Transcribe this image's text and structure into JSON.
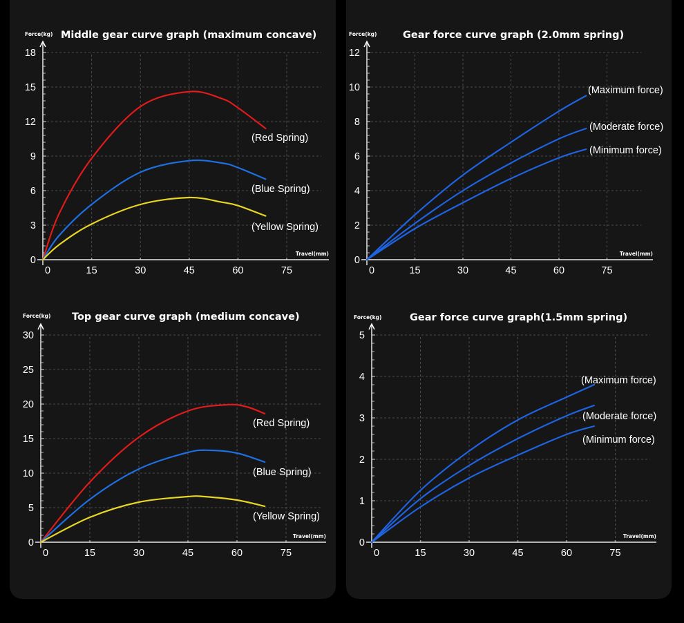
{
  "chart_data": [
    {
      "type": "line",
      "title": "Middle gear curve graph (maximum concave)",
      "ylabel": "Force(kg)",
      "xlabel": "Travel(mm)",
      "xticks": [
        0,
        15,
        30,
        45,
        60,
        75
      ],
      "yticks": [
        0,
        3,
        6,
        9,
        12,
        15,
        18
      ],
      "xlim": [
        0,
        75
      ],
      "ylim": [
        0,
        18
      ],
      "grid": true,
      "series": [
        {
          "name": "(Red Spring)",
          "color": "#e01b1b",
          "x": [
            0,
            5,
            15,
            30,
            45,
            55,
            60,
            68.5
          ],
          "y": [
            0,
            4.0,
            8.8,
            13.3,
            14.6,
            14.0,
            13.2,
            11.4
          ]
        },
        {
          "name": "(Blue Spring)",
          "color": "#1f6fe0",
          "x": [
            0,
            5,
            15,
            30,
            45,
            55,
            60,
            68.5
          ],
          "y": [
            0,
            2.1,
            4.8,
            7.6,
            8.6,
            8.4,
            8.0,
            7.0
          ]
        },
        {
          "name": "(Yellow Spring)",
          "color": "#e8d622",
          "x": [
            0,
            5,
            15,
            30,
            45,
            55,
            60,
            68.5
          ],
          "y": [
            0,
            1.3,
            3.1,
            4.8,
            5.4,
            5.0,
            4.7,
            3.8
          ]
        }
      ]
    },
    {
      "type": "line",
      "title": "Gear force curve graph (2.0mm spring)",
      "ylabel": "Force(kg)",
      "xlabel": "Travel(mm)",
      "xticks": [
        0,
        15,
        30,
        45,
        60,
        75
      ],
      "yticks": [
        0,
        2,
        4,
        6,
        8,
        10,
        12
      ],
      "xlim": [
        0,
        75
      ],
      "ylim": [
        0,
        12
      ],
      "grid": true,
      "series": [
        {
          "name": "(Maximum force)",
          "color": "#1f63e0",
          "x": [
            0,
            15,
            30,
            45,
            60,
            68.5
          ],
          "y": [
            0,
            2.6,
            4.9,
            6.8,
            8.6,
            9.5
          ]
        },
        {
          "name": "(Moderate force)",
          "color": "#1f63e0",
          "x": [
            0,
            15,
            30,
            45,
            60,
            68.5
          ],
          "y": [
            0,
            2.1,
            4.0,
            5.6,
            7.0,
            7.6
          ]
        },
        {
          "name": "(Minimum force)",
          "color": "#1f63e0",
          "x": [
            0,
            15,
            30,
            45,
            60,
            68.5
          ],
          "y": [
            0,
            1.8,
            3.3,
            4.7,
            5.9,
            6.4
          ]
        }
      ]
    },
    {
      "type": "line",
      "title": "Top gear curve graph (medium concave)",
      "ylabel": "Force(kg)",
      "xlabel": "Travel(mm)",
      "xticks": [
        0,
        15,
        30,
        45,
        60,
        75
      ],
      "yticks": [
        0,
        5,
        10,
        15,
        20,
        25,
        30
      ],
      "xlim": [
        0,
        75
      ],
      "ylim": [
        0,
        30
      ],
      "grid": true,
      "series": [
        {
          "name": "(Red Spring)",
          "color": "#e01b1b",
          "x": [
            0,
            15,
            30,
            45,
            57,
            63,
            68.5
          ],
          "y": [
            0,
            8.7,
            15.2,
            19.0,
            19.9,
            19.6,
            18.6
          ]
        },
        {
          "name": "(Blue Spring)",
          "color": "#1f6fe0",
          "x": [
            0,
            15,
            30,
            45,
            52,
            60,
            68.5
          ],
          "y": [
            0,
            6.2,
            10.6,
            13.0,
            13.3,
            12.9,
            11.6
          ]
        },
        {
          "name": "(Yellow Spring)",
          "color": "#e8d622",
          "x": [
            0,
            15,
            30,
            45,
            50,
            60,
            68.5
          ],
          "y": [
            0,
            3.6,
            5.8,
            6.6,
            6.6,
            6.1,
            5.2
          ]
        }
      ]
    },
    {
      "type": "line",
      "title": "Gear force curve graph(1.5mm spring)",
      "ylabel": "Force(kg)",
      "xlabel": "Travel(mm)",
      "xticks": [
        0,
        15,
        30,
        45,
        60,
        75
      ],
      "yticks": [
        0,
        1,
        2,
        3,
        4,
        5
      ],
      "xlim": [
        0,
        75
      ],
      "ylim": [
        0,
        5
      ],
      "grid": true,
      "series": [
        {
          "name": "(Maximum force)",
          "color": "#1f63e0",
          "x": [
            0,
            15,
            30,
            45,
            60,
            68.5
          ],
          "y": [
            0,
            1.25,
            2.2,
            2.95,
            3.5,
            3.8
          ]
        },
        {
          "name": "(Moderate force)",
          "color": "#1f63e0",
          "x": [
            0,
            15,
            30,
            45,
            60,
            68.5
          ],
          "y": [
            0,
            1.05,
            1.85,
            2.5,
            3.05,
            3.3
          ]
        },
        {
          "name": "(Minimum force)",
          "color": "#1f63e0",
          "x": [
            0,
            15,
            30,
            45,
            60,
            68.5
          ],
          "y": [
            0,
            0.85,
            1.55,
            2.1,
            2.6,
            2.8
          ]
        }
      ]
    }
  ]
}
